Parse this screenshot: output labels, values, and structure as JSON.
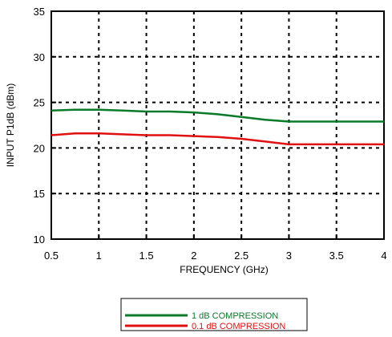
{
  "chart_data": {
    "type": "line",
    "title": "",
    "xlabel": "FREQUENCY (GHz)",
    "ylabel": "INPUT P1dB (dBm)",
    "xlim": [
      0.5,
      4
    ],
    "ylim": [
      10,
      35
    ],
    "x_ticks": [
      "0.5",
      "1",
      "1.5",
      "2",
      "2.5",
      "3",
      "3.5",
      "4"
    ],
    "y_ticks": [
      "10",
      "15",
      "20",
      "25",
      "30",
      "35"
    ],
    "grid": true,
    "legend_position": "bottom-center",
    "series": [
      {
        "name": "1 dB COMPRESSION",
        "color": "#0a7a2a",
        "x": [
          0.5,
          0.75,
          1.0,
          1.25,
          1.5,
          1.75,
          2.0,
          2.25,
          2.5,
          2.75,
          3.0,
          3.25,
          3.5,
          3.75,
          4.0
        ],
        "y": [
          24.1,
          24.2,
          24.2,
          24.1,
          24.0,
          24.0,
          23.9,
          23.7,
          23.4,
          23.1,
          22.9,
          22.9,
          22.9,
          22.9,
          22.9
        ]
      },
      {
        "name": "0.1 dB COMPRESSION",
        "color": "#e01010",
        "x": [
          0.5,
          0.75,
          1.0,
          1.25,
          1.5,
          1.75,
          2.0,
          2.25,
          2.5,
          2.75,
          3.0,
          3.25,
          3.5,
          3.75,
          4.0
        ],
        "y": [
          21.4,
          21.6,
          21.6,
          21.5,
          21.4,
          21.4,
          21.3,
          21.2,
          21.0,
          20.7,
          20.4,
          20.4,
          20.4,
          20.4,
          20.4
        ]
      }
    ]
  }
}
